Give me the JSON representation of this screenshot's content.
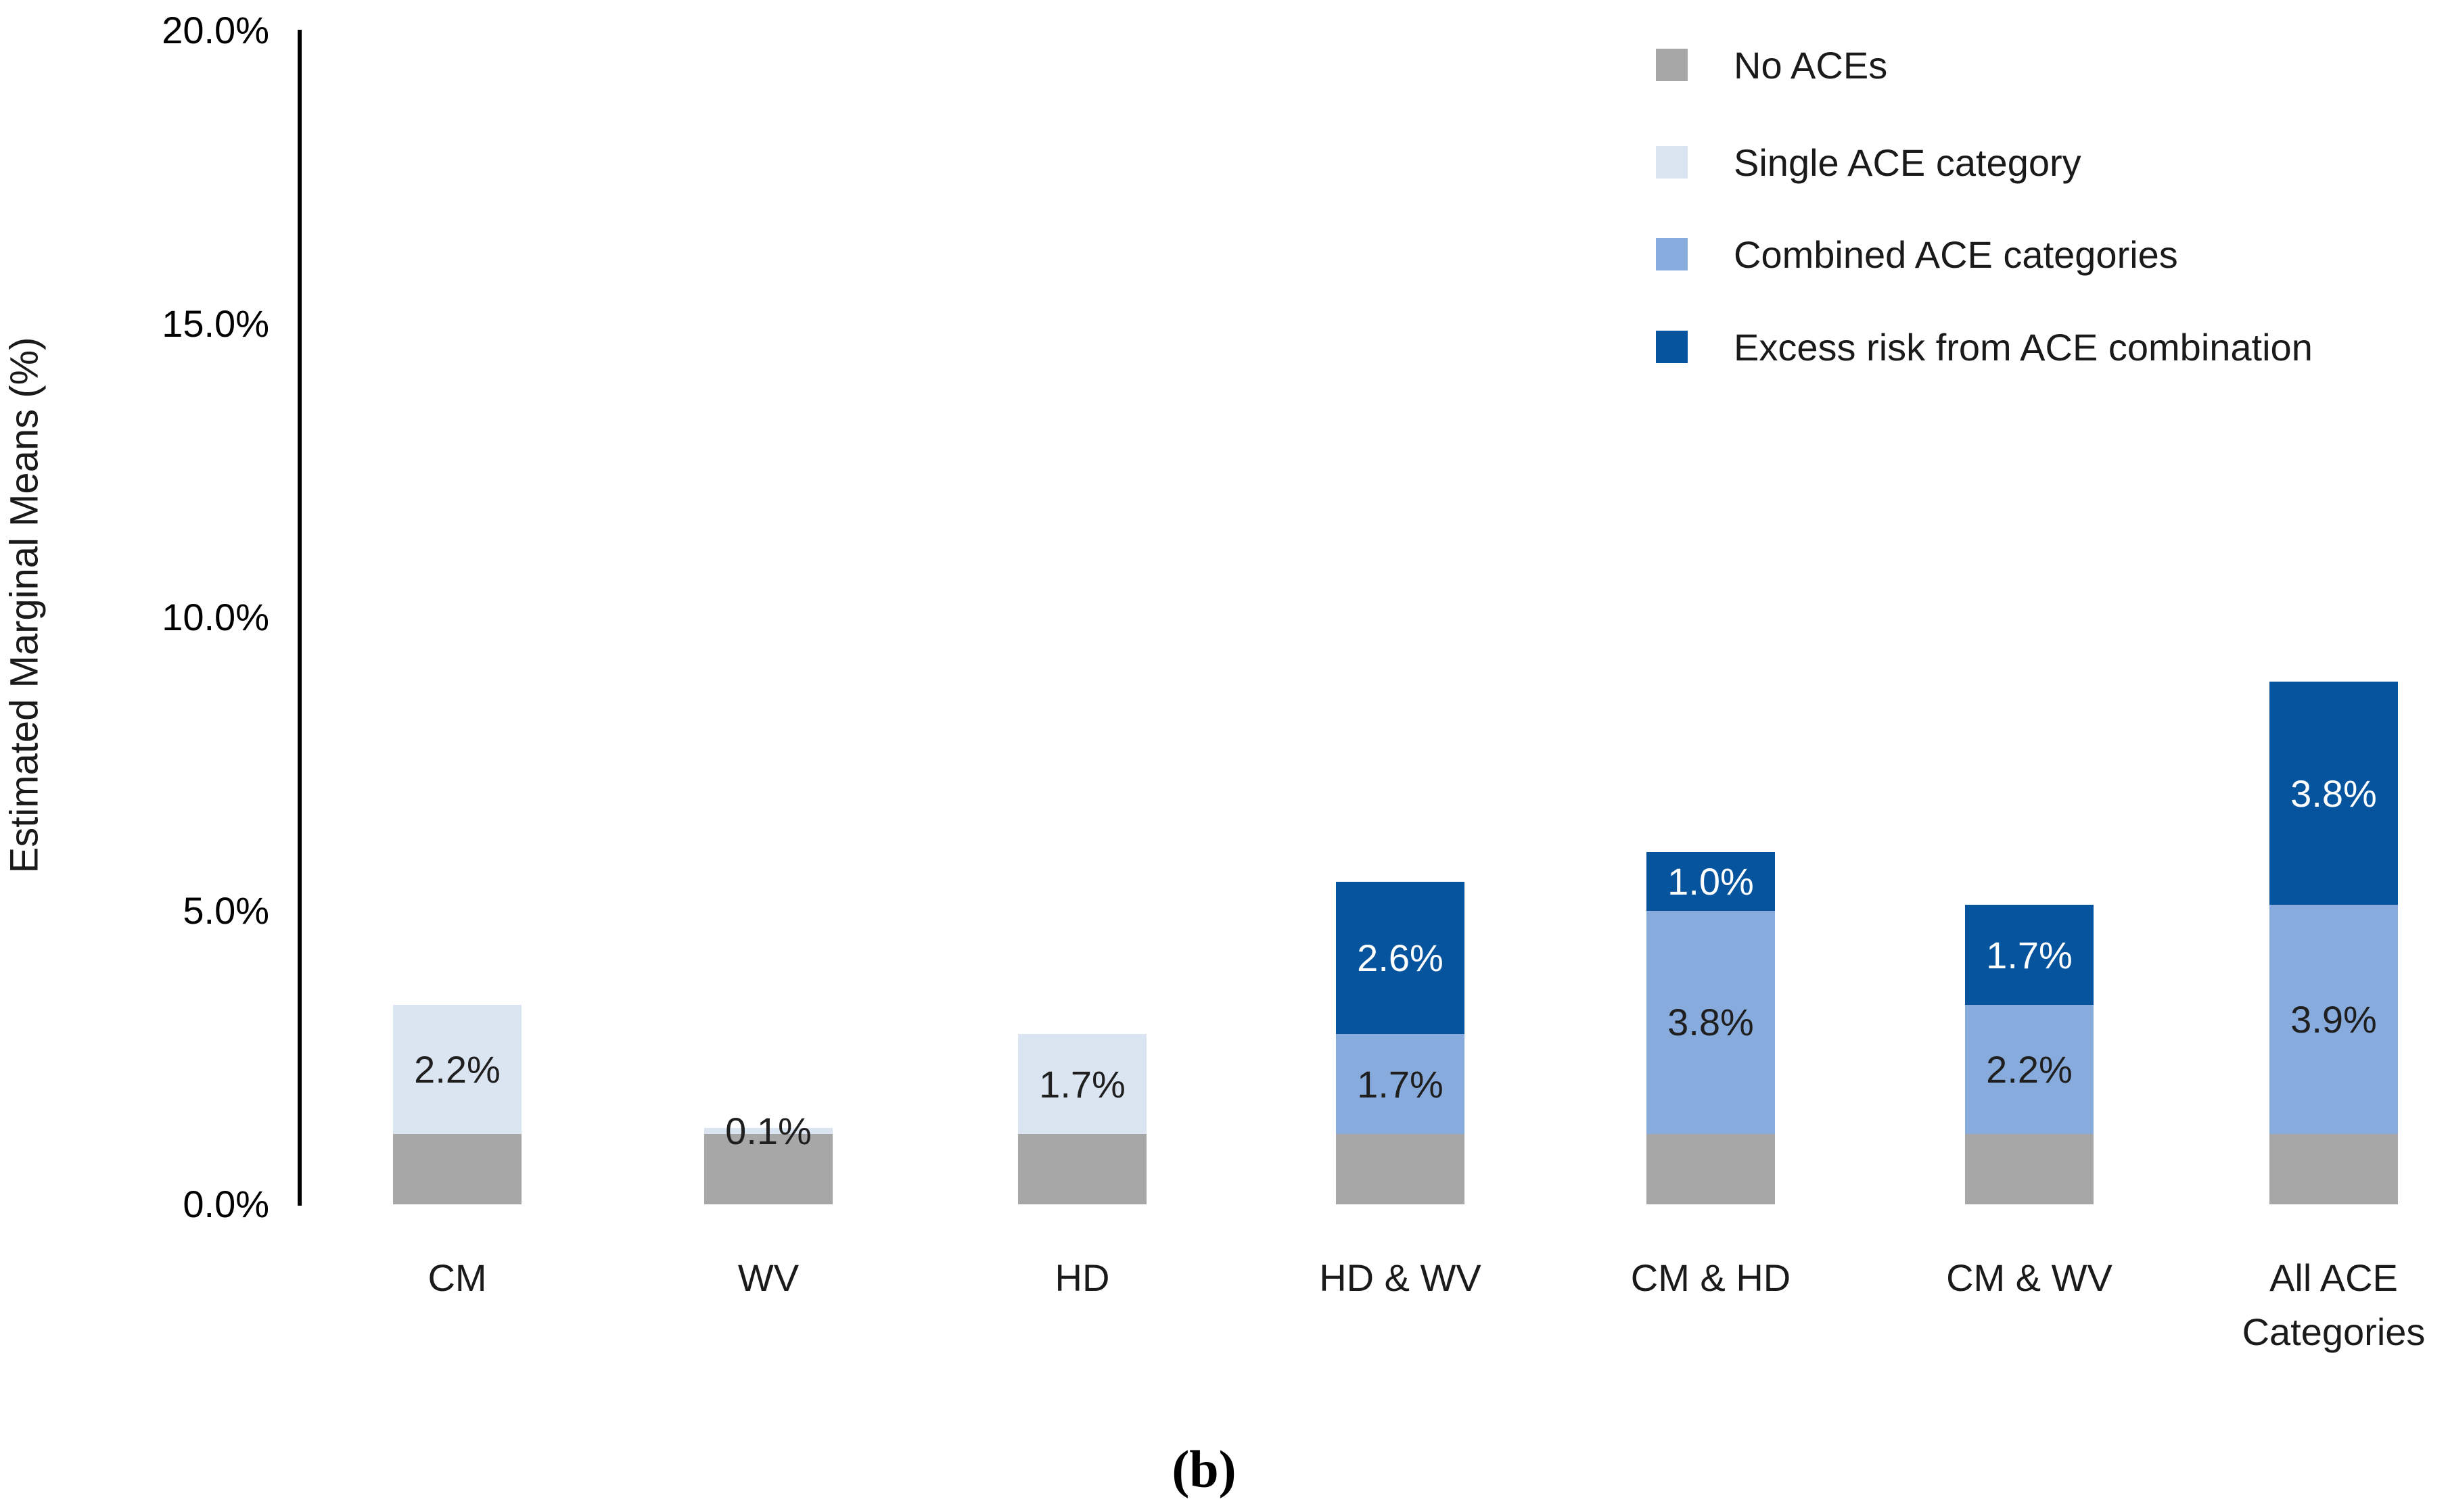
{
  "figure": {
    "caption": "(b)",
    "background": "#ffffff"
  },
  "chart_data": {
    "type": "bar",
    "stacked": true,
    "title": "",
    "xlabel": "",
    "ylabel": "Estimated Marginal Means (%)",
    "ylim": [
      0,
      20
    ],
    "grid": false,
    "yticks": [
      {
        "value": 20,
        "label": "20.0%"
      },
      {
        "value": 15,
        "label": "15.0%"
      },
      {
        "value": 10,
        "label": "10.0%"
      },
      {
        "value": 5,
        "label": "5.0%"
      },
      {
        "value": 0,
        "label": "0.0%"
      }
    ],
    "categories": [
      "CM",
      "WV",
      "HD",
      "HD & WV",
      "CM & HD",
      "CM & WV",
      "All ACE\nCategories"
    ],
    "series": [
      {
        "name": "No ACEs",
        "color": "#a8a7a7",
        "values": [
          1.2,
          1.2,
          1.2,
          1.2,
          1.2,
          1.2,
          1.2
        ],
        "labels": [
          "",
          "",
          "",
          "",
          "",
          "",
          ""
        ],
        "label_color": "#1f1f1f"
      },
      {
        "name": "Single ACE category",
        "color": "#dbe5f2",
        "values": [
          2.2,
          0.1,
          1.7,
          0,
          0,
          0,
          0
        ],
        "labels": [
          "2.2%",
          "0.1%",
          "1.7%",
          "",
          "",
          "",
          ""
        ],
        "label_color": "#1f1f1f"
      },
      {
        "name": "Combined ACE categories",
        "color": "#88abdd",
        "values": [
          0,
          0,
          0,
          1.7,
          3.8,
          2.2,
          3.9
        ],
        "labels": [
          "",
          "",
          "",
          "1.7%",
          "3.8%",
          "2.2%",
          "3.9%"
        ],
        "label_color": "#1f1f1f"
      },
      {
        "name": "Excess risk from ACE combination",
        "color": "#07549e",
        "values": [
          0,
          0,
          0,
          2.6,
          1.0,
          1.7,
          3.8
        ],
        "labels": [
          "",
          "",
          "",
          "2.6%",
          "1.0%",
          "1.7%",
          "3.8%"
        ],
        "label_color": "#ffffff"
      }
    ],
    "legend": {
      "position": "top-right",
      "items": [
        "No ACEs",
        "Single ACE category",
        "Combined ACE categories",
        "Excess risk from ACE combination"
      ]
    }
  }
}
